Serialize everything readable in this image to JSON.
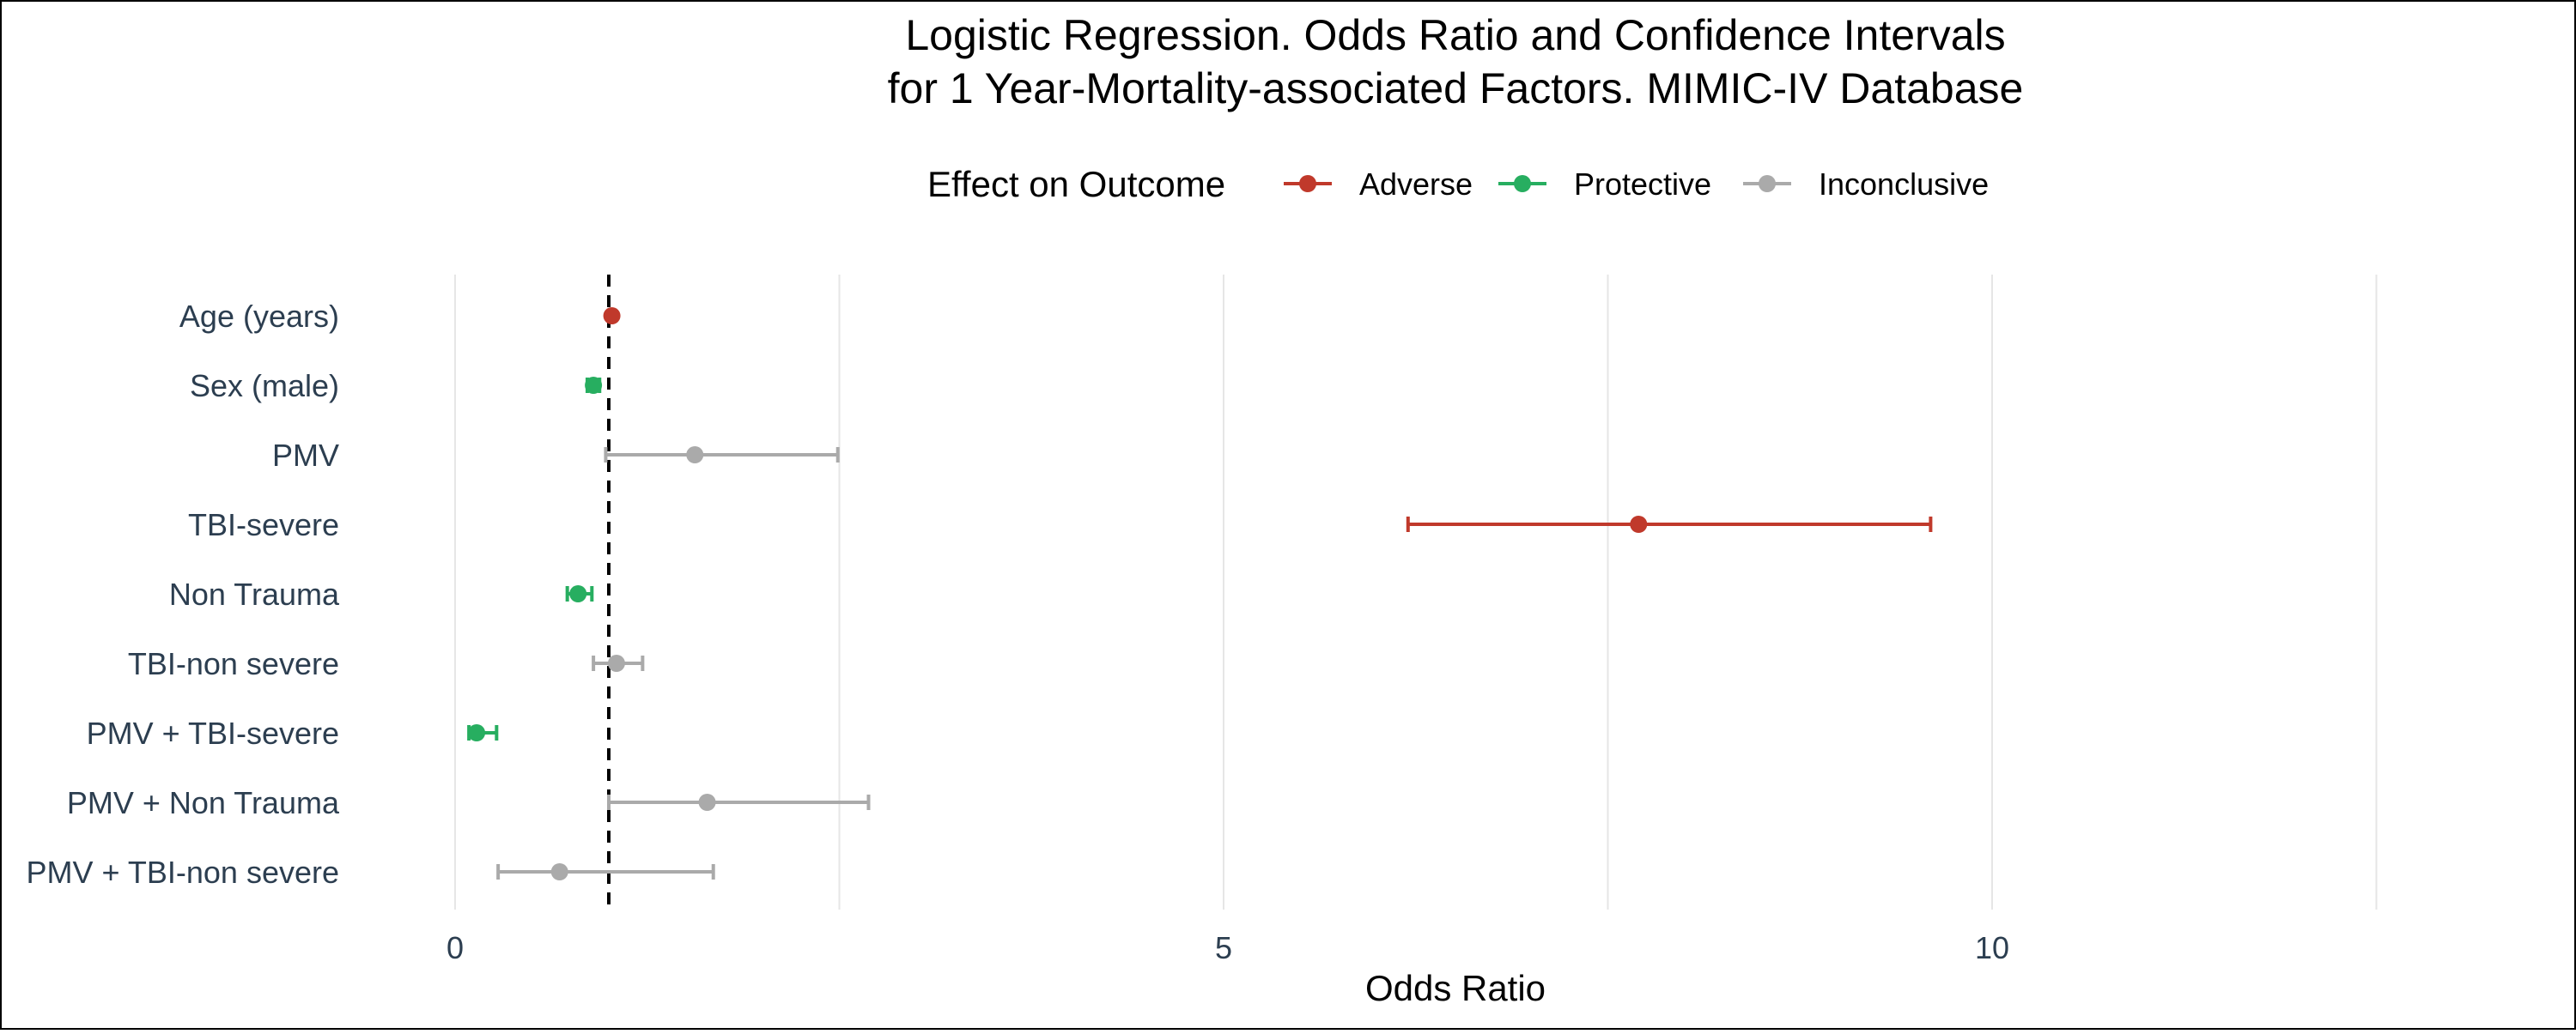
{
  "colors": {
    "adverse": "#C0392B",
    "protective": "#27AE60",
    "inconclusive": "#AAAAAA",
    "reference_line": "#000000",
    "grid": "#E6E6E6",
    "tick_label": "#2C3E50",
    "text": "#000000"
  },
  "chart_data": {
    "type": "forest",
    "title_lines": [
      "Logistic Regression. Odds Ratio and Confidence Intervals",
      "for 1 Year-Mortality-associated Factors. MIMIC-IV Database"
    ],
    "xlabel": "Odds Ratio",
    "ylabel": "",
    "xlim": [
      0,
      12.5
    ],
    "x_ticks": [
      0,
      5,
      10
    ],
    "x_minor_gridlines": [
      2.5,
      7.5,
      12.5
    ],
    "reference_line": 1,
    "grid": true,
    "legend": {
      "title": "Effect on Outcome",
      "position": "top",
      "entries": [
        {
          "label": "Adverse",
          "effect": "adverse"
        },
        {
          "label": "Protective",
          "effect": "protective"
        },
        {
          "label": "Inconclusive",
          "effect": "inconclusive"
        }
      ]
    },
    "factors": [
      {
        "label": "Age (years)",
        "or": 1.02,
        "lower": 1.01,
        "upper": 1.03,
        "effect": "adverse"
      },
      {
        "label": "Sex (male)",
        "or": 0.9,
        "lower": 0.86,
        "upper": 0.94,
        "effect": "protective"
      },
      {
        "label": "PMV",
        "or": 1.56,
        "lower": 0.98,
        "upper": 2.49,
        "effect": "inconclusive"
      },
      {
        "label": "TBI-severe",
        "or": 7.7,
        "lower": 6.2,
        "upper": 9.6,
        "effect": "adverse"
      },
      {
        "label": "Non Trauma",
        "or": 0.8,
        "lower": 0.73,
        "upper": 0.89,
        "effect": "protective"
      },
      {
        "label": "TBI-non severe",
        "or": 1.05,
        "lower": 0.9,
        "upper": 1.22,
        "effect": "inconclusive"
      },
      {
        "label": "PMV + TBI-severe",
        "or": 0.14,
        "lower": 0.09,
        "upper": 0.27,
        "effect": "protective"
      },
      {
        "label": "PMV + Non Trauma",
        "or": 1.64,
        "lower": 1.0,
        "upper": 2.69,
        "effect": "inconclusive"
      },
      {
        "label": "PMV + TBI-non severe",
        "or": 0.68,
        "lower": 0.28,
        "upper": 1.68,
        "effect": "inconclusive"
      }
    ]
  }
}
